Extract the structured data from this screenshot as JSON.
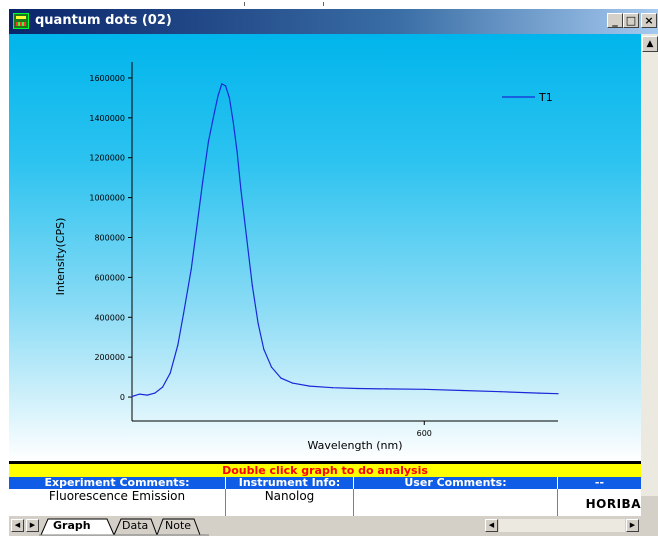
{
  "window": {
    "title": "quantum dots (02)",
    "minimize_label": "_",
    "maximize_label": "□",
    "close_label": "×"
  },
  "chart_data": {
    "type": "line",
    "xlabel": "Wavelength (nm)",
    "ylabel": "Intensity(CPS)",
    "x_ticks": [
      600
    ],
    "y_ticks": [
      0,
      200000,
      400000,
      600000,
      800000,
      1000000,
      1200000,
      1400000,
      1600000
    ],
    "y_tick_labels": [
      "0",
      "200000",
      "400000",
      "600000",
      "800000",
      "1000000",
      "1200000",
      "1400000",
      "1600000"
    ],
    "x_tick_labels": [
      "600"
    ],
    "ylim": [
      -120000,
      1680000
    ],
    "xlim": [
      447,
      670
    ],
    "legend_position": "top-right",
    "series": [
      {
        "name": "T1",
        "color": "#1a28d8",
        "x": [
          447,
          451,
          455,
          459,
          463,
          467,
          471,
          474,
          478,
          481,
          484,
          487,
          490,
          492,
          494,
          496,
          498,
          500,
          502,
          504,
          507,
          510,
          513,
          516,
          520,
          525,
          531,
          540,
          552,
          565,
          580,
          600,
          620,
          640,
          660,
          670
        ],
        "y": [
          3000,
          15000,
          10000,
          20000,
          50000,
          120000,
          260000,
          420000,
          640000,
          860000,
          1080000,
          1280000,
          1420000,
          1510000,
          1570000,
          1560000,
          1500000,
          1380000,
          1230000,
          1040000,
          800000,
          560000,
          370000,
          240000,
          150000,
          95000,
          70000,
          55000,
          47000,
          43000,
          41000,
          39000,
          33000,
          27000,
          20000,
          17000
        ]
      }
    ]
  },
  "analysis_bar": {
    "text": "Double click graph to do analysis"
  },
  "info_table": {
    "headers": [
      "Experiment Comments:",
      "Instrument Info:",
      "User Comments:",
      "--"
    ],
    "values": [
      "Fluorescence Emission",
      "Nanolog",
      "",
      "HORIBA"
    ]
  },
  "sheet_tabs": [
    "Graph",
    "Data",
    "Note"
  ],
  "colors": {
    "graph_background_top": "#00b5ec",
    "graph_background_bottom": "#ffffff",
    "analysis_bar_bg": "#ffff00",
    "analysis_bar_text": "#ff0000",
    "table_header_bg": "#0f5ce6"
  }
}
